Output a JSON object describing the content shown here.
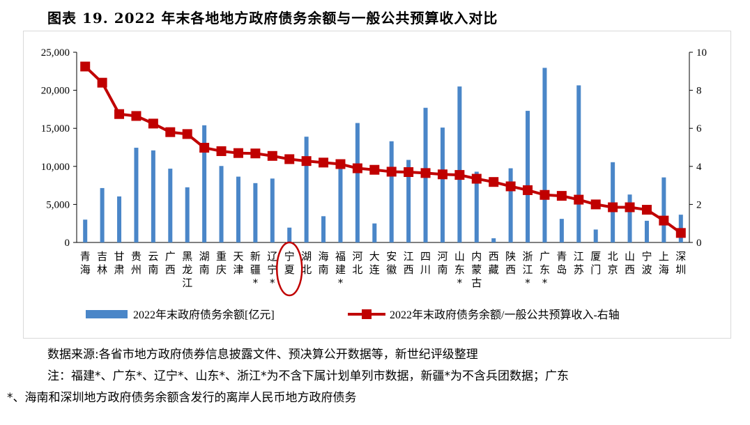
{
  "title": "图表 19. 2022 年末各地地方政府债务余额与一般公共预算收入对比",
  "chart_data": {
    "type": "bar",
    "categories": [
      {
        "label": "青海",
        "chars": [
          "青",
          "海"
        ]
      },
      {
        "label": "吉林",
        "chars": [
          "吉",
          "林"
        ]
      },
      {
        "label": "甘肃",
        "chars": [
          "甘",
          "肃"
        ]
      },
      {
        "label": "贵州",
        "chars": [
          "贵",
          "州"
        ]
      },
      {
        "label": "云南",
        "chars": [
          "云",
          "南"
        ]
      },
      {
        "label": "广西",
        "chars": [
          "广",
          "西"
        ]
      },
      {
        "label": "黑龙江",
        "chars": [
          "黑",
          "龙",
          "江"
        ]
      },
      {
        "label": "湖南",
        "chars": [
          "湖",
          "南"
        ]
      },
      {
        "label": "重庆",
        "chars": [
          "重",
          "庆"
        ]
      },
      {
        "label": "天津",
        "chars": [
          "天",
          "津"
        ]
      },
      {
        "label": "新疆*",
        "chars": [
          "新",
          "疆",
          "*"
        ]
      },
      {
        "label": "辽宁*",
        "chars": [
          "辽",
          "宁",
          "*"
        ]
      },
      {
        "label": "宁夏",
        "chars": [
          "宁",
          "夏"
        ]
      },
      {
        "label": "湖北",
        "chars": [
          "湖",
          "北"
        ]
      },
      {
        "label": "海南",
        "chars": [
          "海",
          "南"
        ]
      },
      {
        "label": "福建*",
        "chars": [
          "福",
          "建",
          "*"
        ]
      },
      {
        "label": "河北",
        "chars": [
          "河",
          "北"
        ]
      },
      {
        "label": "大连",
        "chars": [
          "大",
          "连"
        ]
      },
      {
        "label": "安徽",
        "chars": [
          "安",
          "徽"
        ]
      },
      {
        "label": "江西",
        "chars": [
          "江",
          "西"
        ]
      },
      {
        "label": "四川",
        "chars": [
          "四",
          "川"
        ]
      },
      {
        "label": "河南",
        "chars": [
          "河",
          "南"
        ]
      },
      {
        "label": "山东*",
        "chars": [
          "山",
          "东",
          "*"
        ]
      },
      {
        "label": "内蒙古",
        "chars": [
          "内",
          "蒙",
          "古"
        ]
      },
      {
        "label": "西藏",
        "chars": [
          "西",
          "藏"
        ]
      },
      {
        "label": "陕西",
        "chars": [
          "陕",
          "西"
        ]
      },
      {
        "label": "浙江*",
        "chars": [
          "浙",
          "江",
          "*"
        ]
      },
      {
        "label": "广东*",
        "chars": [
          "广",
          "东",
          "*"
        ]
      },
      {
        "label": "青岛",
        "chars": [
          "青",
          "岛"
        ]
      },
      {
        "label": "江苏",
        "chars": [
          "江",
          "苏"
        ]
      },
      {
        "label": "厦门",
        "chars": [
          "厦",
          "门"
        ]
      },
      {
        "label": "北京",
        "chars": [
          "北",
          "京"
        ]
      },
      {
        "label": "山西",
        "chars": [
          "山",
          "西"
        ]
      },
      {
        "label": "宁波",
        "chars": [
          "宁",
          "波"
        ]
      },
      {
        "label": "上海",
        "chars": [
          "上",
          "海"
        ]
      },
      {
        "label": "深圳",
        "chars": [
          "深",
          "圳"
        ]
      }
    ],
    "series": [
      {
        "name": "2022年末政府债务余额[亿元]",
        "type": "bar",
        "axis": "left",
        "color": "#4A86C8",
        "values": [
          3000,
          7150,
          6050,
          12450,
          12100,
          9700,
          7250,
          15400,
          10050,
          8650,
          7800,
          8400,
          1950,
          13900,
          3450,
          10100,
          15700,
          2500,
          13300,
          10850,
          17700,
          15100,
          20500,
          9300,
          550,
          9750,
          17300,
          22950,
          3100,
          20650,
          1700,
          10550,
          6300,
          2850,
          8550,
          3650
        ]
      },
      {
        "name": "2022年末政府债务余额/一般公共预算收入-右轴",
        "type": "line",
        "axis": "right",
        "color": "#C00000",
        "values": [
          9.25,
          8.4,
          6.75,
          6.65,
          6.25,
          5.8,
          5.7,
          4.98,
          4.8,
          4.7,
          4.68,
          4.55,
          4.38,
          4.28,
          4.2,
          4.12,
          3.9,
          3.82,
          3.72,
          3.7,
          3.65,
          3.58,
          3.55,
          3.35,
          3.18,
          2.95,
          2.75,
          2.5,
          2.45,
          2.25,
          2.0,
          1.85,
          1.85,
          1.72,
          1.15,
          0.5
        ]
      }
    ],
    "y_left": {
      "range": [
        0,
        25000
      ],
      "ticks": [
        "0",
        "5,000",
        "10,000",
        "15,000",
        "20,000",
        "25,000"
      ]
    },
    "y_right": {
      "range": [
        0,
        10
      ],
      "ticks": [
        "0",
        "2",
        "4",
        "6",
        "8",
        "10"
      ]
    },
    "highlight_category": "宁夏",
    "highlight_color": "#C00000",
    "legend_position": "bottom",
    "grid": false
  },
  "notes": [
    "数据来源:各省市地方政府债券信息披露文件、预决算公开数据等，新世纪评级整理",
    "注：福建*、广东*、辽宁*、山东*、浙江*为不含下属计划单列市数据，新疆*为不含兵团数据；广东",
    "*、海南和深圳地方政府债务余额含发行的离岸人民币地方政府债务"
  ]
}
